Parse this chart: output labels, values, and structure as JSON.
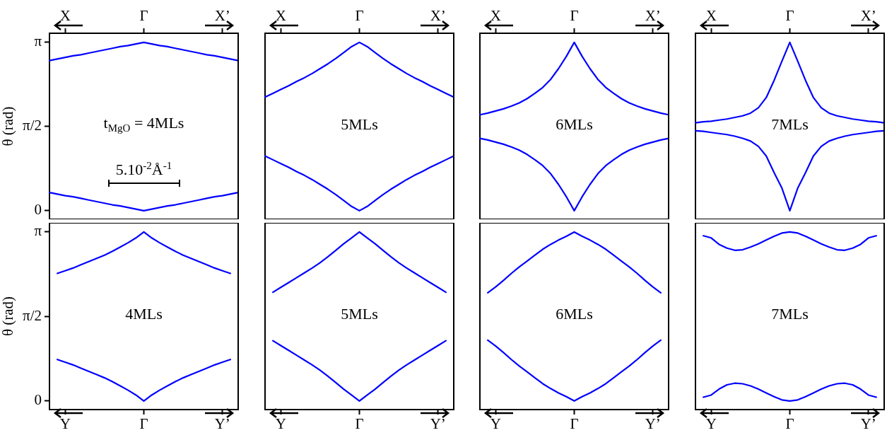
{
  "chart_data": [
    {
      "type": "line",
      "ylabel": "θ (rad)",
      "categories": [
        null,
        null,
        "X",
        null,
        null,
        null,
        null,
        null,
        null,
        null,
        null,
        null,
        "Γ",
        null,
        null,
        null,
        null,
        null,
        null,
        null,
        null,
        null,
        "X’",
        null,
        null
      ],
      "ylim": [
        -0.16,
        3.31
      ],
      "yticks": [
        {
          "value": 0,
          "label": "0"
        },
        {
          "value": 1.5708,
          "label": "π/2"
        },
        {
          "value": 3.1416,
          "label": "π"
        }
      ],
      "marker": "none",
      "annotations": [
        "t$_{MgO}$ = 4MLs",
        "5.10$^{-2}$Å$^{-1}$"
      ],
      "series": [
        {
          "color": "#0000ff",
          "values": [
            2.8,
            2.83,
            2.86,
            2.89,
            2.91,
            2.94,
            2.97,
            3.0,
            3.03,
            3.06,
            3.08,
            3.11,
            3.14,
            3.11,
            3.08,
            3.06,
            3.03,
            3.0,
            2.97,
            2.94,
            2.91,
            2.89,
            2.86,
            2.83,
            2.8
          ]
        },
        {
          "color": "#0000ff",
          "values": [
            0.34,
            0.31,
            0.28,
            0.26,
            0.23,
            0.2,
            0.17,
            0.14,
            0.11,
            0.09,
            0.06,
            0.03,
            0,
            0.03,
            0.06,
            0.09,
            0.11,
            0.14,
            0.17,
            0.2,
            0.23,
            0.26,
            0.28,
            0.31,
            0.34
          ]
        }
      ]
    },
    {
      "type": "line",
      "tick_labels": "x",
      "categories": [
        null,
        null,
        "X",
        null,
        null,
        null,
        null,
        null,
        null,
        null,
        null,
        null,
        "Γ",
        null,
        null,
        null,
        null,
        null,
        null,
        null,
        null,
        null,
        "X’",
        null,
        null
      ],
      "ylim": [
        -0.16,
        3.31
      ],
      "marker": "none",
      "annotations": [
        "5MLs"
      ],
      "series": [
        {
          "color": "#0000ff",
          "values": [
            2.12,
            2.19,
            2.26,
            2.33,
            2.41,
            2.48,
            2.56,
            2.65,
            2.74,
            2.84,
            2.95,
            3.06,
            3.14,
            3.06,
            2.95,
            2.84,
            2.74,
            2.65,
            2.56,
            2.48,
            2.41,
            2.33,
            2.26,
            2.19,
            2.12
          ]
        },
        {
          "color": "#0000ff",
          "values": [
            1.02,
            0.95,
            0.88,
            0.81,
            0.73,
            0.66,
            0.58,
            0.49,
            0.4,
            0.3,
            0.19,
            0.08,
            0,
            0.08,
            0.19,
            0.3,
            0.4,
            0.49,
            0.58,
            0.66,
            0.73,
            0.81,
            0.88,
            0.95,
            1.02
          ]
        }
      ]
    },
    {
      "type": "line",
      "tick_labels": "x",
      "categories": [
        null,
        null,
        "X",
        null,
        null,
        null,
        null,
        null,
        null,
        null,
        null,
        null,
        "Γ",
        null,
        null,
        null,
        null,
        null,
        null,
        null,
        null,
        null,
        "X’",
        null,
        null
      ],
      "ylim": [
        -0.16,
        3.31
      ],
      "marker": "none",
      "annotations": [
        "6MLs"
      ],
      "series": [
        {
          "color": "#0000ff",
          "values": [
            1.79,
            1.82,
            1.86,
            1.9,
            1.95,
            2.01,
            2.09,
            2.19,
            2.3,
            2.45,
            2.65,
            2.88,
            3.14,
            2.88,
            2.65,
            2.45,
            2.3,
            2.19,
            2.09,
            2.01,
            1.95,
            1.9,
            1.86,
            1.82,
            1.79
          ]
        },
        {
          "color": "#0000ff",
          "values": [
            1.35,
            1.32,
            1.28,
            1.24,
            1.19,
            1.13,
            1.05,
            0.95,
            0.84,
            0.69,
            0.49,
            0.26,
            0,
            0.26,
            0.49,
            0.69,
            0.84,
            0.95,
            1.05,
            1.13,
            1.19,
            1.24,
            1.28,
            1.32,
            1.35
          ]
        }
      ]
    },
    {
      "type": "line",
      "tick_labels": "x",
      "categories": [
        null,
        null,
        "X",
        null,
        null,
        null,
        null,
        null,
        null,
        null,
        null,
        null,
        "Γ",
        null,
        null,
        null,
        null,
        null,
        null,
        null,
        null,
        null,
        "X’",
        null,
        null
      ],
      "ylim": [
        -0.16,
        3.31
      ],
      "marker": "none",
      "annotations": [
        "7MLs"
      ],
      "series": [
        {
          "color": "#0000ff",
          "values": [
            1.64,
            1.66,
            1.67,
            1.69,
            1.71,
            1.74,
            1.77,
            1.82,
            1.92,
            2.11,
            2.43,
            2.79,
            3.14,
            2.79,
            2.43,
            2.11,
            1.92,
            1.82,
            1.77,
            1.74,
            1.71,
            1.69,
            1.67,
            1.66,
            1.64
          ]
        },
        {
          "color": "#0000ff",
          "values": [
            1.49,
            1.48,
            1.46,
            1.44,
            1.42,
            1.39,
            1.35,
            1.3,
            1.2,
            1.02,
            0.71,
            0.42,
            0,
            0.42,
            0.71,
            1.02,
            1.2,
            1.3,
            1.35,
            1.39,
            1.42,
            1.44,
            1.46,
            1.48,
            1.49
          ]
        }
      ]
    },
    {
      "type": "line",
      "ylabel": "θ (rad)",
      "categories": [
        null,
        null,
        "Y",
        null,
        null,
        null,
        null,
        null,
        null,
        null,
        null,
        null,
        "Γ",
        null,
        null,
        null,
        null,
        null,
        null,
        null,
        null,
        null,
        "Y’",
        null,
        null
      ],
      "ylim": [
        -0.16,
        3.31
      ],
      "yticks": [
        {
          "value": 0,
          "label": "0"
        },
        {
          "value": 1.5708,
          "label": "π/2"
        },
        {
          "value": 3.1416,
          "label": "π"
        }
      ],
      "marker": "none",
      "annotations": [
        "4MLs"
      ],
      "series": [
        {
          "color": "#0000ff",
          "values": [
            null,
            2.37,
            2.42,
            2.47,
            2.53,
            2.59,
            2.65,
            2.71,
            2.78,
            2.86,
            2.94,
            3.03,
            3.14,
            3.03,
            2.94,
            2.86,
            2.78,
            2.71,
            2.65,
            2.59,
            2.53,
            2.47,
            2.42,
            2.37,
            null
          ]
        },
        {
          "color": "#0000ff",
          "values": [
            null,
            0.77,
            0.72,
            0.67,
            0.61,
            0.55,
            0.49,
            0.43,
            0.36,
            0.28,
            0.2,
            0.11,
            0,
            0.11,
            0.2,
            0.28,
            0.36,
            0.43,
            0.49,
            0.55,
            0.61,
            0.67,
            0.72,
            0.77,
            null
          ]
        }
      ]
    },
    {
      "type": "line",
      "tick_labels": "x",
      "categories": [
        null,
        null,
        "Y",
        null,
        null,
        null,
        null,
        null,
        null,
        null,
        null,
        null,
        "Γ",
        null,
        null,
        null,
        null,
        null,
        null,
        null,
        null,
        null,
        "Y’",
        null,
        null
      ],
      "ylim": [
        -0.16,
        3.31
      ],
      "marker": "none",
      "annotations": [
        "5MLs"
      ],
      "series": [
        {
          "color": "#0000ff",
          "values": [
            null,
            2.02,
            2.11,
            2.2,
            2.29,
            2.38,
            2.47,
            2.57,
            2.68,
            2.8,
            2.92,
            3.03,
            3.14,
            3.03,
            2.92,
            2.8,
            2.68,
            2.57,
            2.47,
            2.38,
            2.29,
            2.2,
            2.11,
            2.02,
            null
          ]
        },
        {
          "color": "#0000ff",
          "values": [
            null,
            1.12,
            1.03,
            0.94,
            0.85,
            0.76,
            0.67,
            0.57,
            0.46,
            0.34,
            0.22,
            0.11,
            0,
            0.11,
            0.22,
            0.34,
            0.46,
            0.57,
            0.67,
            0.76,
            0.85,
            0.94,
            1.03,
            1.12,
            null
          ]
        }
      ]
    },
    {
      "type": "line",
      "tick_labels": "x",
      "categories": [
        null,
        null,
        "Y",
        null,
        null,
        null,
        null,
        null,
        null,
        null,
        null,
        null,
        "Γ",
        null,
        null,
        null,
        null,
        null,
        null,
        null,
        null,
        null,
        "Y’",
        null,
        null
      ],
      "ylim": [
        -0.16,
        3.31
      ],
      "marker": "none",
      "annotations": [
        "6MLs"
      ],
      "series": [
        {
          "color": "#0000ff",
          "values": [
            null,
            2.01,
            2.12,
            2.24,
            2.37,
            2.49,
            2.6,
            2.71,
            2.82,
            2.91,
            2.99,
            3.06,
            3.14,
            3.06,
            2.99,
            2.91,
            2.82,
            2.71,
            2.6,
            2.49,
            2.37,
            2.24,
            2.12,
            2.01,
            null
          ]
        },
        {
          "color": "#0000ff",
          "values": [
            null,
            1.13,
            1.02,
            0.9,
            0.77,
            0.65,
            0.54,
            0.43,
            0.32,
            0.23,
            0.15,
            0.08,
            0,
            0.08,
            0.15,
            0.23,
            0.32,
            0.43,
            0.54,
            0.65,
            0.77,
            0.9,
            1.02,
            1.13,
            null
          ]
        }
      ]
    },
    {
      "type": "line",
      "tick_labels": "x",
      "categories": [
        null,
        null,
        "Y",
        null,
        null,
        null,
        null,
        null,
        null,
        null,
        null,
        null,
        "Γ",
        null,
        null,
        null,
        null,
        null,
        null,
        null,
        null,
        null,
        "Y’",
        null,
        null
      ],
      "ylim": [
        -0.16,
        3.31
      ],
      "marker": "none",
      "annotations": [
        "7MLs"
      ],
      "series": [
        {
          "color": "#0000ff",
          "values": [
            null,
            3.07,
            3.03,
            2.91,
            2.84,
            2.8,
            2.81,
            2.86,
            2.92,
            2.99,
            3.06,
            3.12,
            3.14,
            3.12,
            3.06,
            2.99,
            2.92,
            2.86,
            2.81,
            2.8,
            2.84,
            2.91,
            3.03,
            3.07,
            null
          ]
        },
        {
          "color": "#0000ff",
          "values": [
            null,
            0.07,
            0.11,
            0.22,
            0.3,
            0.33,
            0.32,
            0.28,
            0.22,
            0.15,
            0.08,
            0.02,
            0.0,
            0.02,
            0.08,
            0.15,
            0.22,
            0.28,
            0.32,
            0.33,
            0.3,
            0.22,
            0.11,
            0.07,
            null
          ]
        }
      ]
    }
  ]
}
